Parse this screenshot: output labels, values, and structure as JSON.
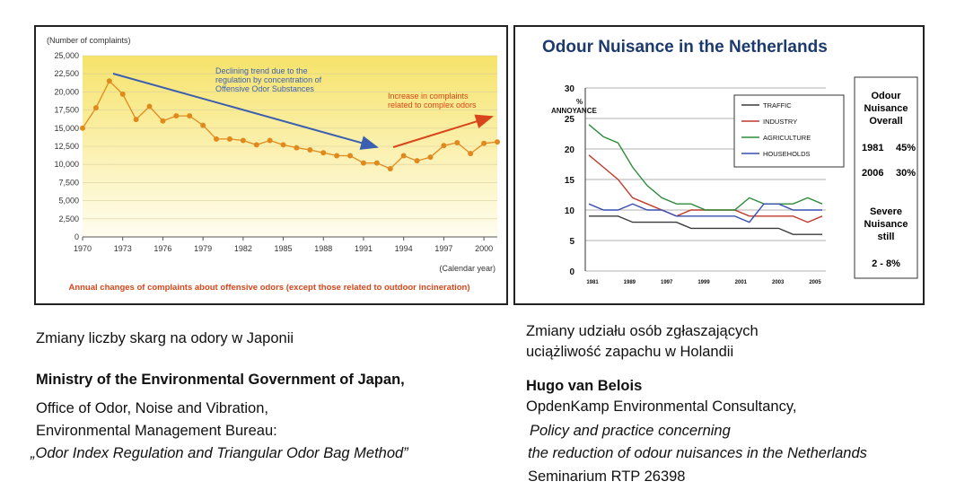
{
  "left_chart": {
    "unit_label": "(Number of complaints)",
    "x_unit_label": "(Calendar year)",
    "caption": "Annual changes of complaints about offensive odors (except those related to outdoor incineration)",
    "annotation_decline": [
      "Declining trend due to the",
      "regulation by concentration of",
      "Offensive Odor Substances"
    ],
    "annotation_increase": [
      "Increase in complaints",
      "related to complex odors"
    ],
    "colors": {
      "line": "#e08a1e",
      "marker": "#e08a1e",
      "decline_arrow": "#3b5fb0",
      "increase_arrow": "#d9451a",
      "caption": "#d9451a",
      "bg_top": "#f6e36a",
      "bg_bottom": "#fffdf0"
    }
  },
  "right_chart": {
    "title": "Odour Nuisance in the Netherlands",
    "ylabel_lines": [
      "%",
      "ANNOYANCE"
    ],
    "legend": [
      "TRAFFIC",
      "INDUSTRY",
      "AGRICULTURE",
      "HOUSEHOLDS"
    ],
    "side_box": {
      "overall_lines": [
        "Odour",
        "Nuisance",
        "Overall"
      ],
      "rows": [
        {
          "year": "1981",
          "value": "45%"
        },
        {
          "year": "2006",
          "value": "30%"
        }
      ],
      "severe_lines": [
        "Severe",
        "Nuisance",
        "still"
      ],
      "severe_value": "2 - 8%"
    },
    "colors": {
      "title": "#1d3a6e",
      "TRAFFIC": "#3a3a3a",
      "INDUSTRY": "#c0392b",
      "AGRICULTURE": "#2e8b3a",
      "HOUSEHOLDS": "#3a4fb0"
    }
  },
  "chart_data": [
    {
      "type": "line",
      "title": "",
      "xlabel": "(Calendar year)",
      "ylabel": "(Number of complaints)",
      "ylim": [
        0,
        25000
      ],
      "xlim": [
        1970,
        2001
      ],
      "x_ticks": [
        "1970",
        "1973",
        "1976",
        "1979",
        "1982",
        "1985",
        "1988",
        "1991",
        "1994",
        "1997",
        "2000"
      ],
      "y_ticks": [
        "0",
        "2,500",
        "5,000",
        "7,500",
        "10,000",
        "12,500",
        "15,000",
        "17,500",
        "20,000",
        "22,500",
        "25,000"
      ],
      "grid": "horizontal",
      "series": [
        {
          "x": [
            1970,
            1971,
            1972,
            1973,
            1974,
            1975,
            1976,
            1977,
            1978,
            1979,
            1980,
            1981,
            1982,
            1983,
            1984,
            1985,
            1986,
            1987,
            1988,
            1989,
            1990,
            1991,
            1992,
            1993,
            1994,
            1995,
            1996,
            1997,
            1998,
            1999,
            2000,
            2001
          ],
          "values": [
            15000,
            17800,
            21500,
            19700,
            16200,
            18000,
            16000,
            16700,
            16700,
            15400,
            13500,
            13500,
            13300,
            12700,
            13300,
            12700,
            12300,
            12000,
            11600,
            11200,
            11200,
            10200,
            10200,
            9400,
            11200,
            10500,
            11000,
            12600,
            13000,
            11500,
            12900,
            13100
          ]
        }
      ]
    },
    {
      "type": "line",
      "title": "Odour Nuisance in the Netherlands",
      "xlabel": "",
      "ylabel": "% ANNOYANCE",
      "ylim": [
        0,
        30
      ],
      "xlim": [
        1981,
        2007
      ],
      "x_ticks": [
        "1981",
        "1989",
        "1997",
        "1999",
        "2001",
        "2003",
        "2005"
      ],
      "y_ticks": [
        "0",
        "5",
        "10",
        "15",
        "20",
        "25",
        "30"
      ],
      "grid": "horizontal",
      "legend": "top-right",
      "series": [
        {
          "name": "TRAFFIC",
          "values": [
            9,
            9,
            9,
            8,
            8,
            8,
            8,
            7,
            7,
            7,
            7,
            7,
            7,
            7,
            6,
            6,
            6
          ]
        },
        {
          "name": "INDUSTRY",
          "values": [
            19,
            17,
            15,
            12,
            11,
            10,
            9,
            10,
            10,
            10,
            10,
            9,
            9,
            9,
            9,
            8,
            9
          ]
        },
        {
          "name": "AGRICULTURE",
          "values": [
            24,
            22,
            21,
            17,
            14,
            12,
            11,
            11,
            10,
            10,
            10,
            12,
            11,
            11,
            11,
            12,
            11
          ]
        },
        {
          "name": "HOUSEHOLDS",
          "values": [
            11,
            10,
            10,
            11,
            10,
            10,
            9,
            9,
            9,
            9,
            9,
            8,
            11,
            11,
            10,
            10,
            10
          ]
        }
      ]
    }
  ],
  "captions": {
    "left_desc": "Zmiany liczby skarg na odory w Japonii",
    "left_author": "Ministry of the Environmental Government of Japan,",
    "left_line2": "Office of Odor, Noise and Vibration,",
    "left_line3": "Environmental Management Bureau:",
    "left_line4": "„Odor Index Regulation and Triangular Odor Bag Method”",
    "right_desc_1": "Zmiany udziału osób zgłaszających",
    "right_desc_2": "uciążliwość zapachu w Holandii",
    "right_author": "Hugo van Belois",
    "right_line2": "OpdenKamp Environmental Consultancy,",
    "right_line3": "Policy and practice concerning",
    "right_line4": "the reduction of odour nuisances in the Netherlands",
    "right_line5": "Seminarium RTP 26398"
  }
}
